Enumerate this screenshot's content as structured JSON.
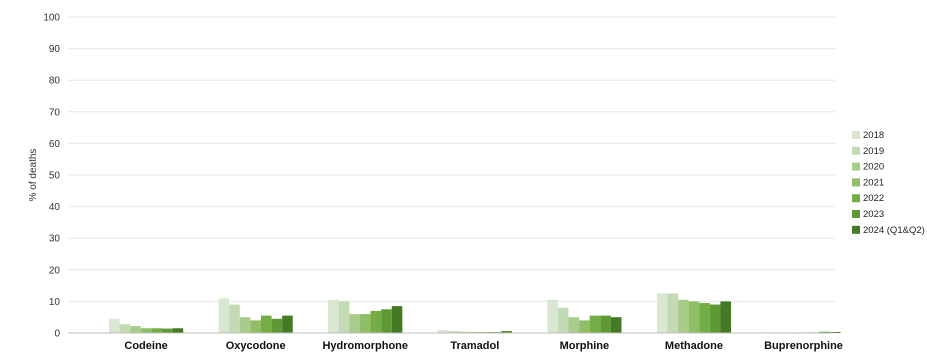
{
  "chart_data": {
    "type": "bar",
    "ylabel": "% of deaths",
    "ylim": [
      0,
      100
    ],
    "yticks": [
      "0",
      "10",
      "20",
      "30",
      "40",
      "50",
      "60",
      "70",
      "80",
      "90",
      "100"
    ],
    "grid": true,
    "legend_position": "right",
    "categories": [
      "Codeine",
      "Oxycodone",
      "Hydromorphone",
      "Tramadol",
      "Morphine",
      "Methadone",
      "Buprenorphine"
    ],
    "series": [
      {
        "name": "2018",
        "color": "#d9e6d1",
        "values": [
          4.5,
          11,
          10.5,
          1,
          10.5,
          12.5,
          0.2
        ]
      },
      {
        "name": "2019",
        "color": "#c4dab4",
        "values": [
          2.8,
          9,
          10,
          0.6,
          8,
          12.5,
          0.2
        ]
      },
      {
        "name": "2020",
        "color": "#a9cc8c",
        "values": [
          2.2,
          5,
          6,
          0.4,
          5,
          10.5,
          0.2
        ]
      },
      {
        "name": "2021",
        "color": "#8fbe66",
        "values": [
          1.5,
          4,
          6,
          0.3,
          4,
          10,
          0.2
        ]
      },
      {
        "name": "2022",
        "color": "#74ad45",
        "values": [
          1.5,
          5.5,
          7,
          0.3,
          5.5,
          9.5,
          0.2
        ]
      },
      {
        "name": "2023",
        "color": "#5d9a36",
        "values": [
          1.4,
          4.5,
          7.5,
          0.3,
          5.5,
          9,
          0.4
        ]
      },
      {
        "name": "2024 (Q1&Q2)",
        "color": "#447a26",
        "values": [
          1.5,
          5.5,
          8.5,
          0.6,
          5,
          10,
          0.3
        ]
      }
    ]
  }
}
